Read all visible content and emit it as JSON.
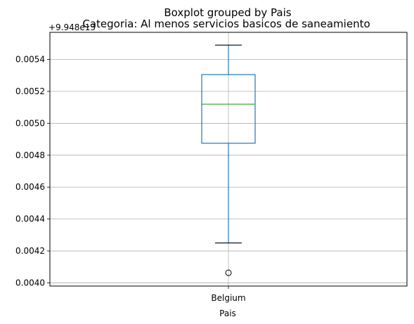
{
  "suptitle": "Boxplot grouped by Pais",
  "chart_data": {
    "type": "boxplot",
    "title": "Categoria: Al menos servicios basicos de saneamiento",
    "xlabel": "Pais",
    "ylabel": "",
    "y_offset_label": "+9.948e13",
    "categories": [
      "Belgium"
    ],
    "boxes": [
      {
        "category": "Belgium",
        "whisker_low": 0.00425,
        "q1": 0.004875,
        "median": 0.00512,
        "q3": 0.005305,
        "whisker_high": 0.00549,
        "outliers": [
          0.004063
        ]
      }
    ],
    "ylim": [
      0.00398,
      0.00557
    ],
    "yticks": [
      0.004,
      0.0042,
      0.0044,
      0.0046,
      0.0048,
      0.005,
      0.0052,
      0.0054
    ],
    "ytick_labels": [
      "0.0040",
      "0.0042",
      "0.0044",
      "0.0046",
      "0.0048",
      "0.0050",
      "0.0052",
      "0.0054"
    ],
    "grid": true,
    "colors": {
      "box": "#1f77b4",
      "median": "#2ca02c",
      "whisker_cap": "#000000",
      "grid": "#b0b0b0"
    }
  }
}
